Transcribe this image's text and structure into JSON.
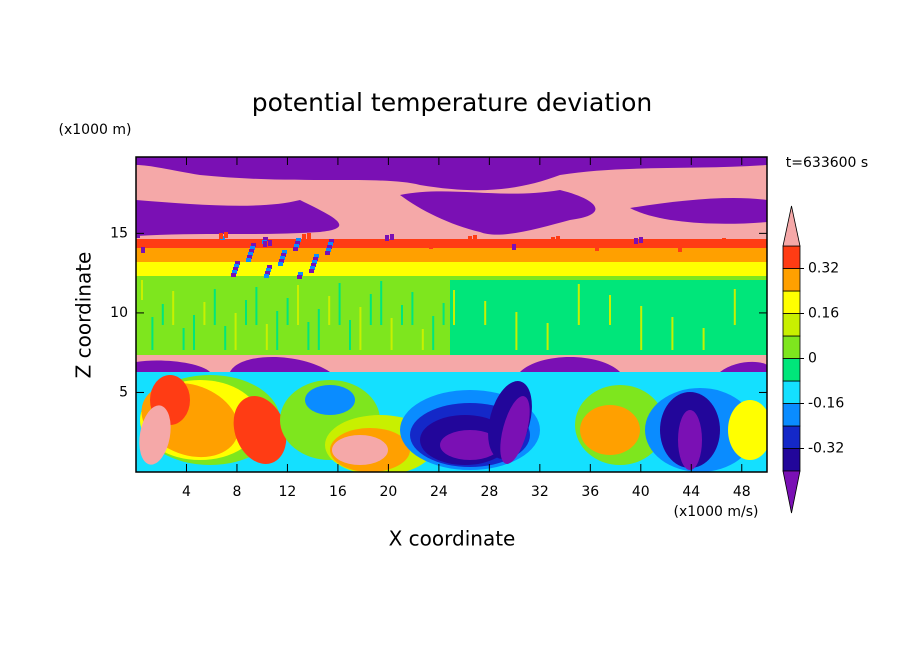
{
  "chart_data": {
    "type": "contour",
    "title": "potential temperature deviation",
    "x_label": "X coordinate",
    "y_label": "Z coordinate",
    "x_unit": "(x1000 m/s)",
    "y_unit": "(x1000 m)",
    "annotation": "t=633600 s",
    "xlim": [
      0,
      50
    ],
    "xticks": [
      4,
      8,
      12,
      16,
      20,
      24,
      28,
      32,
      36,
      40,
      44,
      48
    ],
    "ylim": [
      0,
      19.8
    ],
    "yticks": [
      5,
      10,
      15
    ],
    "levels": [
      -0.4,
      -0.32,
      -0.24,
      -0.16,
      -0.08,
      0,
      0.08,
      0.16,
      0.24,
      0.32,
      0.4
    ],
    "colors": [
      "#7a10b4",
      "#22069a",
      "#1428c8",
      "#0a8cff",
      "#14e0ff",
      "#00e67a",
      "#7ee61e",
      "#c8f000",
      "#ffff00",
      "#ffa000",
      "#ff3c14",
      "#f5a8a8"
    ],
    "cticks": [
      -0.32,
      -0.16,
      0,
      0.16,
      0.32
    ]
  }
}
